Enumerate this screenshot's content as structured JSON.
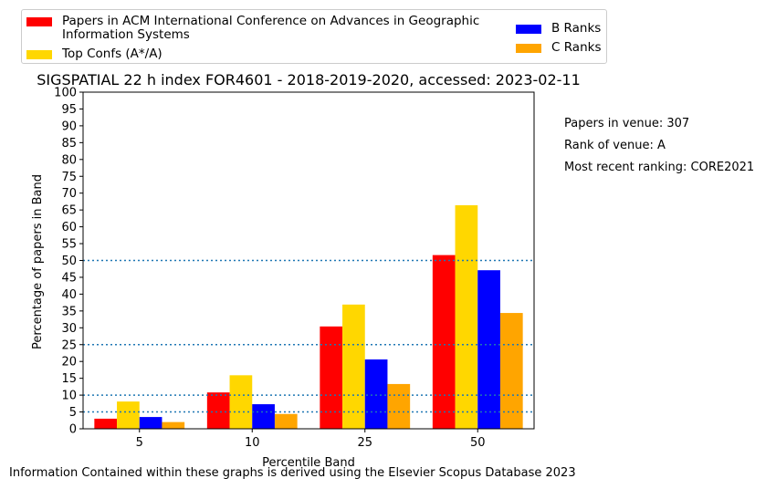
{
  "chart_data": {
    "type": "bar",
    "title": "SIGSPATIAL 22 h index FOR4601 - 2018-2019-2020, accessed: 2023-02-11",
    "xlabel": "Percentile Band",
    "ylabel": "Percentage of papers in Band",
    "categories": [
      "5",
      "10",
      "25",
      "50"
    ],
    "ylim": [
      0,
      100
    ],
    "yticks": [
      0,
      5,
      10,
      15,
      20,
      25,
      30,
      35,
      40,
      45,
      50,
      55,
      60,
      65,
      70,
      75,
      80,
      85,
      90,
      95,
      100
    ],
    "reference_lines": [
      5,
      10,
      25,
      50
    ],
    "legend_position": "top",
    "series": [
      {
        "name": "Papers in ACM International Conference on Advances in Geographic Information Systems",
        "color": "#ff0000",
        "values": [
          3.0,
          10.8,
          30.4,
          51.6
        ]
      },
      {
        "name": "Top Confs (A*/A)",
        "color": "#ffd700",
        "values": [
          8.1,
          15.9,
          36.9,
          66.4
        ]
      },
      {
        "name": "B Ranks",
        "color": "#0000ff",
        "values": [
          3.5,
          7.3,
          20.6,
          47.1
        ]
      },
      {
        "name": "C Ranks",
        "color": "#ffa500",
        "values": [
          2.0,
          4.4,
          13.3,
          34.4
        ]
      }
    ],
    "legend_lines": {
      "series0_line1": "Papers in ACM International Conference on Advances in Geographic",
      "series0_line2": "Information Systems"
    }
  },
  "side_notes": {
    "papers": "Papers in venue: 307",
    "rank": "Rank of venue: A",
    "ranking": "Most recent ranking: CORE2021"
  },
  "footer": "Information Contained within these graphs is derived using the Elsevier Scopus Database 2023"
}
